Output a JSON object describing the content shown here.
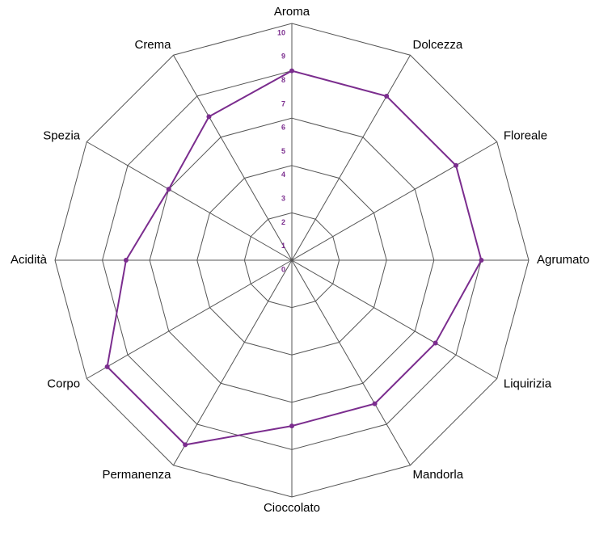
{
  "chart_data": {
    "type": "radar",
    "categories": [
      "Aroma",
      "Dolcezza",
      "Floreale",
      "Agrumato",
      "Liquirizia",
      "Mandorla",
      "Cioccolato",
      "Permanenza",
      "Corpo",
      "Acidità",
      "Spezia",
      "Crema"
    ],
    "values": [
      8,
      8,
      8,
      8,
      7,
      7,
      7,
      9,
      9,
      7,
      6,
      7
    ],
    "color": "#7b2d8e",
    "ylim": [
      0,
      10
    ],
    "yticks": [
      0,
      1,
      2,
      3,
      4,
      5,
      6,
      7,
      8,
      9,
      10
    ],
    "grid": true
  }
}
